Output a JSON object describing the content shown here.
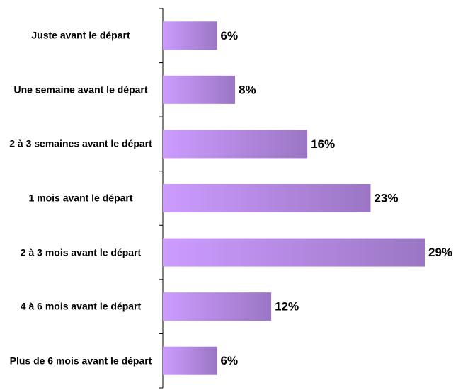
{
  "chart_data": {
    "type": "bar",
    "orientation": "horizontal",
    "categories": [
      "Juste avant le départ",
      "Une semaine avant le départ",
      "2 à 3 semaines avant le départ",
      "1 mois avant le départ",
      "2 à 3 mois avant le départ",
      "4 à 6 mois avant le départ",
      "Plus de 6 mois avant le départ"
    ],
    "values": [
      6,
      8,
      16,
      23,
      29,
      12,
      6
    ],
    "value_labels": [
      "6%",
      "8%",
      "16%",
      "23%",
      "29%",
      "12%",
      "6%"
    ],
    "color": [
      "#cc9cff",
      "#9b76c4"
    ]
  }
}
